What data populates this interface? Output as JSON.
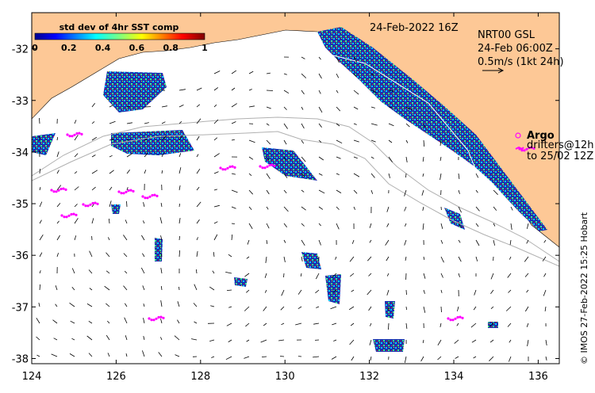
{
  "map": {
    "timestamp": "24-Feb-2022 16Z",
    "current_source": "NRT00 GSL",
    "current_time": "24-Feb 06:00Z",
    "current_scale": "0.5m/s (1kt 24h)",
    "colorbar": {
      "title": "std dev of 4hr SST comp",
      "ticks": [
        "0",
        "0.2",
        "0.4",
        "0.6",
        "0.8",
        "1"
      ],
      "range": [
        0,
        1
      ]
    },
    "legend": {
      "argo_label": "Argo",
      "drifter_label": "drifters@12h",
      "drifter_until": "to 25/02 12Z",
      "symbol_color": "#ff00ff"
    },
    "credit": "© IMOS 27-Feb-2022 15:25 Hobart",
    "x_ticks": [
      "124",
      "126",
      "128",
      "130",
      "132",
      "134",
      "136"
    ],
    "y_ticks": [
      "-32",
      "-33",
      "-34",
      "-35",
      "-36",
      "-37",
      "-38"
    ],
    "lon_range": [
      124,
      136.5
    ],
    "lat_range": [
      -38.1,
      -31.3
    ],
    "colors": {
      "land": "#fdc896",
      "ocean": "#ffffff",
      "sst_low": "#00008f",
      "sst_high": "#800000",
      "drifter": "#ff00ff",
      "isobath": "#b0b0b0"
    }
  }
}
